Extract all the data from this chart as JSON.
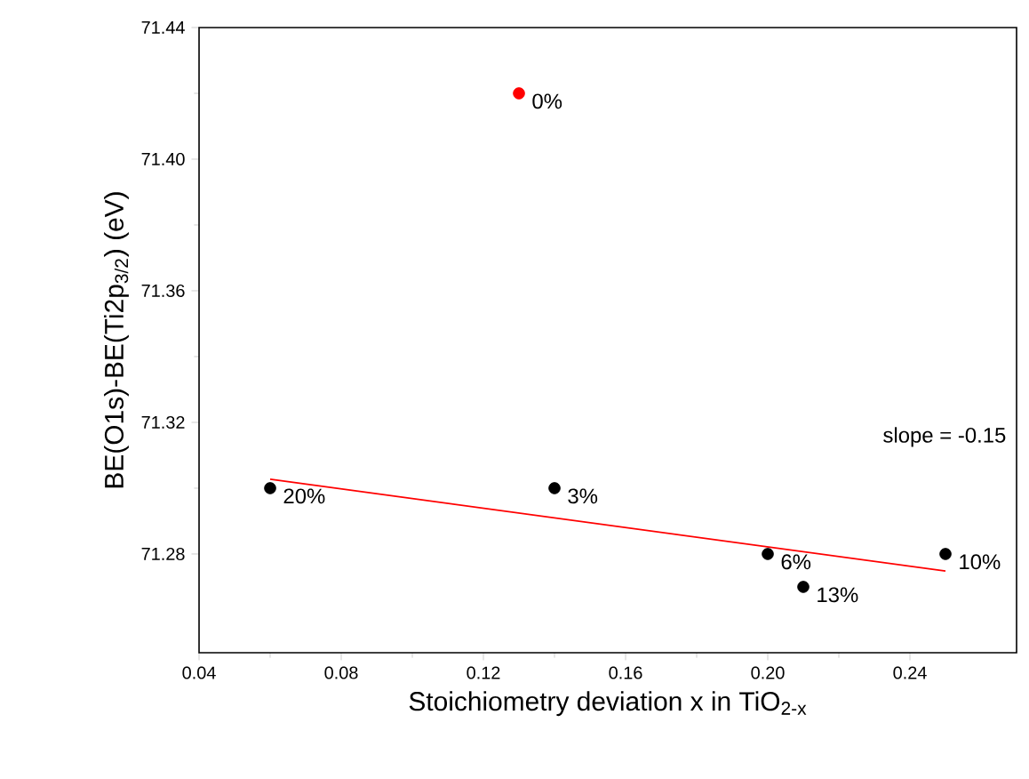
{
  "chart_data": {
    "type": "scatter",
    "xlabel": "Stoichiometry deviation x in TiO$_{2-x}$",
    "ylabel": "BE(O1s)-BE(Ti2p$_{3/2}$) (eV)",
    "xlim": [
      0.04,
      0.27
    ],
    "xticks": [
      {
        "value": 0.04,
        "label": "0.04"
      },
      {
        "value": 0.08,
        "label": "0.08"
      },
      {
        "value": 0.12,
        "label": "0.12"
      },
      {
        "value": 0.16,
        "label": "0.16"
      },
      {
        "value": 0.2,
        "label": "0.20"
      },
      {
        "value": 0.24,
        "label": "0.24"
      }
    ],
    "ylim": [
      71.25,
      71.44
    ],
    "yticks": [
      {
        "value": 71.28,
        "label": "71.28"
      },
      {
        "value": 71.32,
        "label": "71.32"
      },
      {
        "value": 71.36,
        "label": "71.36"
      },
      {
        "value": 71.4,
        "label": "71.40"
      },
      {
        "value": 71.44,
        "label": "71.44"
      }
    ],
    "marker": "circle",
    "series": [
      {
        "color": "#ff0000",
        "x": [
          0.13
        ],
        "values": [
          71.42
        ]
      },
      {
        "color": "#000000",
        "x": [
          0.06,
          0.14,
          0.2,
          0.21,
          0.25
        ],
        "values": [
          71.3,
          71.3,
          71.28,
          71.27,
          71.28
        ]
      },
      {
        "type": "line",
        "color": "#ff0000",
        "marker": "none",
        "x": [
          0.06,
          0.25
        ],
        "values": [
          71.3027,
          71.2748
        ]
      }
    ],
    "annotations": [
      {
        "text": "0%",
        "x": 0.13,
        "y": 71.42
      },
      {
        "text": "20%",
        "x": 0.06,
        "y": 71.3
      },
      {
        "text": "3%",
        "x": 0.14,
        "y": 71.3
      },
      {
        "text": "6%",
        "x": 0.2,
        "y": 71.28
      },
      {
        "text": "13%",
        "x": 0.21,
        "y": 71.27
      },
      {
        "text": "10%",
        "x": 0.25,
        "y": 71.28
      },
      "slope = -0.15"
    ]
  }
}
